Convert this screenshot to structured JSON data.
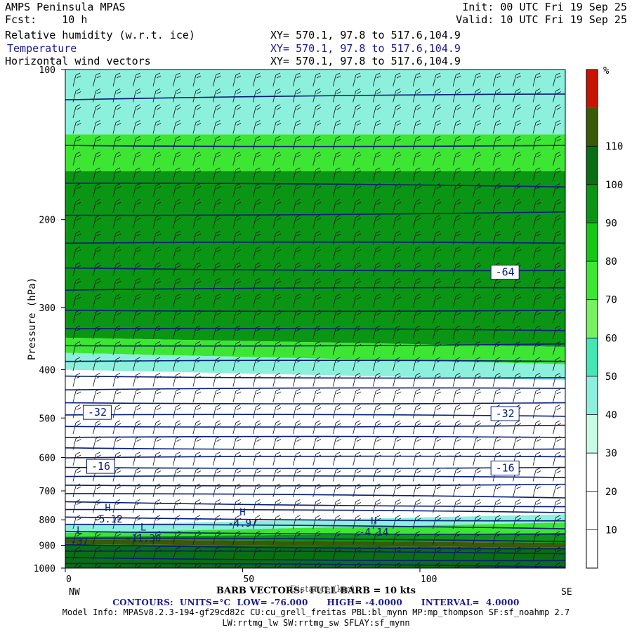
{
  "header": {
    "model": "AMPS Peninsula MPAS",
    "forecast_label": "Fcst:",
    "forecast_value": "10 h",
    "init_label": "Init:",
    "init_value": "00 UTC Fri 19 Sep 25",
    "valid_label": "Valid:",
    "valid_value": "10 UTC Fri 19 Sep 25"
  },
  "fields": [
    {
      "name": "Relative humidity (w.r.t. ice)",
      "xy": "XY= 570.1, 97.8 to 517.6,104.9",
      "color": "#000000"
    },
    {
      "name": "Temperature",
      "xy": "XY= 570.1, 97.8 to 517.6,104.9",
      "color": "#1a1a90"
    },
    {
      "name": "Horizontal wind vectors",
      "xy": "XY= 570.1, 97.8 to 517.6,104.9",
      "color": "#000000"
    }
  ],
  "footer": {
    "barb_label": "BARB VECTORS:  FULL BARB = 10 kts",
    "distance_label": "Distance (km)",
    "contours": {
      "prefix": "CONTOURS:",
      "units": "UNITS=°C",
      "low": "LOW= -76.000",
      "high": "HIGH= -4.0000",
      "interval": "INTERVAL=  4.0000"
    },
    "model_info": "Model Info: MPASv8.2.3-194-gf29cd82c CU:cu_grell_freitas PBL:bl_mynn MP:mp_thompson SF:sf_noahmp 2.7",
    "model_info_2": "LW:rrtmg_lw SW:rrtmg_sw SFLAY:sf_mynn"
  },
  "chart_data": {
    "type": "heatmap",
    "title": "Relative humidity (w.r.t. ice), Temperature, Horizontal wind vectors",
    "xlabel": "Distance (km)",
    "ylabel": "Pressure (hPa)",
    "xlim": [
      0,
      141
    ],
    "ylim": [
      1000,
      100
    ],
    "y_scale": "log-pressure",
    "x_ticks": [
      0,
      50,
      100
    ],
    "y_ticks": [
      100,
      200,
      300,
      400,
      500,
      600,
      700,
      800,
      900,
      1000
    ],
    "x_end_labels": {
      "left": "NW",
      "right": "SE"
    },
    "colorbar": {
      "unit": "%",
      "levels": [
        10,
        20,
        30,
        40,
        50,
        60,
        70,
        80,
        90,
        100,
        110
      ],
      "colors": [
        "#ffffff",
        "#ffffff",
        "#ffffff",
        "#c8fae6",
        "#8cf0dc",
        "#46e6b4",
        "#78f064",
        "#3ce632",
        "#14c814",
        "#0a9614",
        "#0a6e14",
        "#3a5a08",
        "#c81400"
      ]
    },
    "rh_layers": [
      {
        "x": [
          0,
          141
        ],
        "top_p": [
          100,
          100
        ],
        "bot_p": [
          135,
          135
        ],
        "rh": 40
      },
      {
        "x": [
          0,
          141
        ],
        "top_p": [
          135,
          135
        ],
        "bot_p": [
          160,
          160
        ],
        "rh": 75
      },
      {
        "x": [
          0,
          141
        ],
        "top_p": [
          160,
          160
        ],
        "bot_p": [
          345,
          360
        ],
        "rh": 95
      },
      {
        "x": [
          0,
          141
        ],
        "top_p": [
          345,
          360
        ],
        "bot_p": [
          370,
          390
        ],
        "rh": 70
      },
      {
        "x": [
          0,
          141
        ],
        "top_p": [
          370,
          390
        ],
        "bot_p": [
          400,
          420
        ],
        "rh": 40
      },
      {
        "x": [
          0,
          141
        ],
        "top_p": [
          820,
          780
        ],
        "bot_p": [
          850,
          810
        ],
        "rh": 45
      },
      {
        "x": [
          0,
          141
        ],
        "top_p": [
          850,
          810
        ],
        "bot_p": [
          865,
          850
        ],
        "rh": 75
      },
      {
        "x": [
          0,
          141
        ],
        "top_p": [
          865,
          850
        ],
        "bot_p": [
          875,
          890
        ],
        "rh": 95
      },
      {
        "x": [
          0,
          141
        ],
        "top_p": [
          875,
          890
        ],
        "bot_p": [
          895,
          910
        ],
        "rh": 115
      },
      {
        "x": [
          0,
          141
        ],
        "top_p": [
          895,
          910
        ],
        "bot_p": [
          1000,
          1000
        ],
        "rh": 100
      }
    ],
    "temperature_contours": {
      "low": -76,
      "high": -4,
      "interval": 4,
      "labels": [
        {
          "x": 9,
          "p": 487,
          "text": "-32"
        },
        {
          "x": 124,
          "p": 490,
          "text": "-32"
        },
        {
          "x": 10,
          "p": 625,
          "text": "-16"
        },
        {
          "x": 124,
          "p": 630,
          "text": "-16"
        },
        {
          "x": 124,
          "p": 255,
          "text": "-64"
        }
      ]
    },
    "extrema": [
      {
        "type": "H",
        "x": 12,
        "p": 805,
        "value": "-5.12"
      },
      {
        "type": "H",
        "x": 50,
        "p": 820,
        "value": "-4.97"
      },
      {
        "type": "H",
        "x": 87,
        "p": 855,
        "value": "-4.14"
      },
      {
        "type": "L",
        "x": 22,
        "p": 880,
        "value": "-11.30"
      },
      {
        "type": "L",
        "x": 4,
        "p": 892,
        "value": "-37"
      }
    ]
  }
}
